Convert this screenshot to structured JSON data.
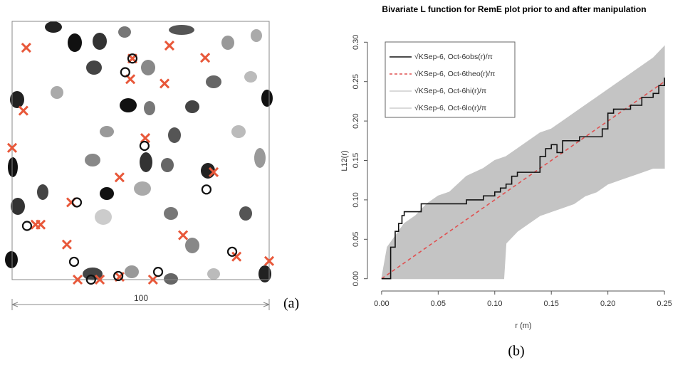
{
  "chart_data": [
    {
      "type": "scatter",
      "label": "(a)",
      "scale_label": "100",
      "xlim": [
        0,
        100
      ],
      "ylim": [
        0,
        100
      ],
      "series": [
        {
          "marker": "x",
          "color": "#e8583a",
          "x": [
            5.5,
            46.8,
            61.2,
            75.1,
            46.0,
            59.3,
            4.4,
            0,
            51.8,
            41.8,
            78.4,
            23.0,
            9.1,
            11.1,
            21.3,
            66.5,
            87.3,
            100,
            25.5,
            34.1,
            41.8,
            54.8
          ],
          "y": [
            89.8,
            85.6,
            90.6,
            85.9,
            77.6,
            75.9,
            65.4,
            51.0,
            54.8,
            39.6,
            41.6,
            29.9,
            21.3,
            21.3,
            13.6,
            17.2,
            8.9,
            7.2,
            0,
            0,
            1.1,
            0
          ]
        },
        {
          "marker": "circle",
          "color": "#111111",
          "x": [
            44.0,
            46.8,
            51.5,
            75.6,
            25.2,
            5.8,
            85.6,
            24.1,
            30.7,
            41.3,
            56.8
          ],
          "y": [
            80.3,
            85.6,
            51.8,
            34.9,
            29.9,
            20.8,
            10.8,
            6.9,
            0,
            1.4,
            3.0
          ]
        }
      ]
    },
    {
      "type": "line",
      "label": "(b)",
      "title": "Bivariate L function for RemE plot prior to and after manipulation",
      "xlabel": "r (m)",
      "ylabel": "L12(r)",
      "xlim": [
        -0.01,
        0.26
      ],
      "ylim": [
        -0.012,
        0.312
      ],
      "xticks": [
        {
          "value": 0,
          "label": "0.00"
        },
        {
          "value": 0.05,
          "label": "0.05"
        },
        {
          "value": 0.1,
          "label": "0.10"
        },
        {
          "value": 0.15,
          "label": "0.15"
        },
        {
          "value": 0.2,
          "label": "0.20"
        },
        {
          "value": 0.25,
          "label": "0.25"
        }
      ],
      "yticks": [
        {
          "value": 0,
          "label": "0.00"
        },
        {
          "value": 0.05,
          "label": "0.05"
        },
        {
          "value": 0.1,
          "label": "0.10"
        },
        {
          "value": 0.15,
          "label": "0.15"
        },
        {
          "value": 0.2,
          "label": "0.20"
        },
        {
          "value": 0.25,
          "label": "0.25"
        },
        {
          "value": 0.3,
          "label": "0.30"
        }
      ],
      "shaded_band": true,
      "series": [
        {
          "name": "√KSep-6, Oct-6obs(r)/π",
          "color": "#111111",
          "linestyle": "solid",
          "step": true,
          "x": [
            0,
            0.008,
            0.012,
            0.015,
            0.018,
            0.02,
            0.035,
            0.075,
            0.09,
            0.1,
            0.105,
            0.11,
            0.115,
            0.12,
            0.14,
            0.145,
            0.15,
            0.155,
            0.16,
            0.175,
            0.195,
            0.2,
            0.205,
            0.22,
            0.23,
            0.24,
            0.245,
            0.25
          ],
          "values": [
            0,
            0.04,
            0.06,
            0.07,
            0.08,
            0.085,
            0.095,
            0.1,
            0.105,
            0.11,
            0.115,
            0.12,
            0.13,
            0.135,
            0.155,
            0.165,
            0.17,
            0.16,
            0.175,
            0.18,
            0.19,
            0.21,
            0.215,
            0.22,
            0.23,
            0.235,
            0.245,
            0.255
          ]
        },
        {
          "name": "√KSep-6, Oct-6theo(r)/π",
          "color": "#e05050",
          "linestyle": "dashed",
          "x": [
            0,
            0.25
          ],
          "values": [
            0,
            0.25
          ]
        },
        {
          "name": "√KSep-6, Oct-6hi(r)/π",
          "color": "#c4c4c4",
          "linestyle": "solid",
          "x": [
            0,
            0.005,
            0.01,
            0.015,
            0.02,
            0.03,
            0.04,
            0.05,
            0.06,
            0.075,
            0.09,
            0.1,
            0.11,
            0.12,
            0.13,
            0.14,
            0.15,
            0.16,
            0.17,
            0.18,
            0.19,
            0.2,
            0.21,
            0.22,
            0.23,
            0.24,
            0.25
          ],
          "values": [
            0,
            0.04,
            0.05,
            0.06,
            0.07,
            0.08,
            0.095,
            0.105,
            0.11,
            0.13,
            0.14,
            0.15,
            0.155,
            0.165,
            0.175,
            0.185,
            0.19,
            0.2,
            0.21,
            0.22,
            0.23,
            0.24,
            0.25,
            0.26,
            0.27,
            0.28,
            0.295
          ]
        },
        {
          "name": "√KSep-6, Oct-6lo(r)/π",
          "color": "#c4c4c4",
          "linestyle": "solid",
          "x": [
            0,
            0.108,
            0.11,
            0.12,
            0.13,
            0.14,
            0.15,
            0.16,
            0.17,
            0.18,
            0.19,
            0.2,
            0.21,
            0.22,
            0.23,
            0.24,
            0.25
          ],
          "values": [
            0,
            0,
            0.045,
            0.06,
            0.07,
            0.08,
            0.085,
            0.09,
            0.095,
            0.105,
            0.11,
            0.12,
            0.125,
            0.13,
            0.135,
            0.14,
            0.14
          ]
        }
      ]
    }
  ]
}
